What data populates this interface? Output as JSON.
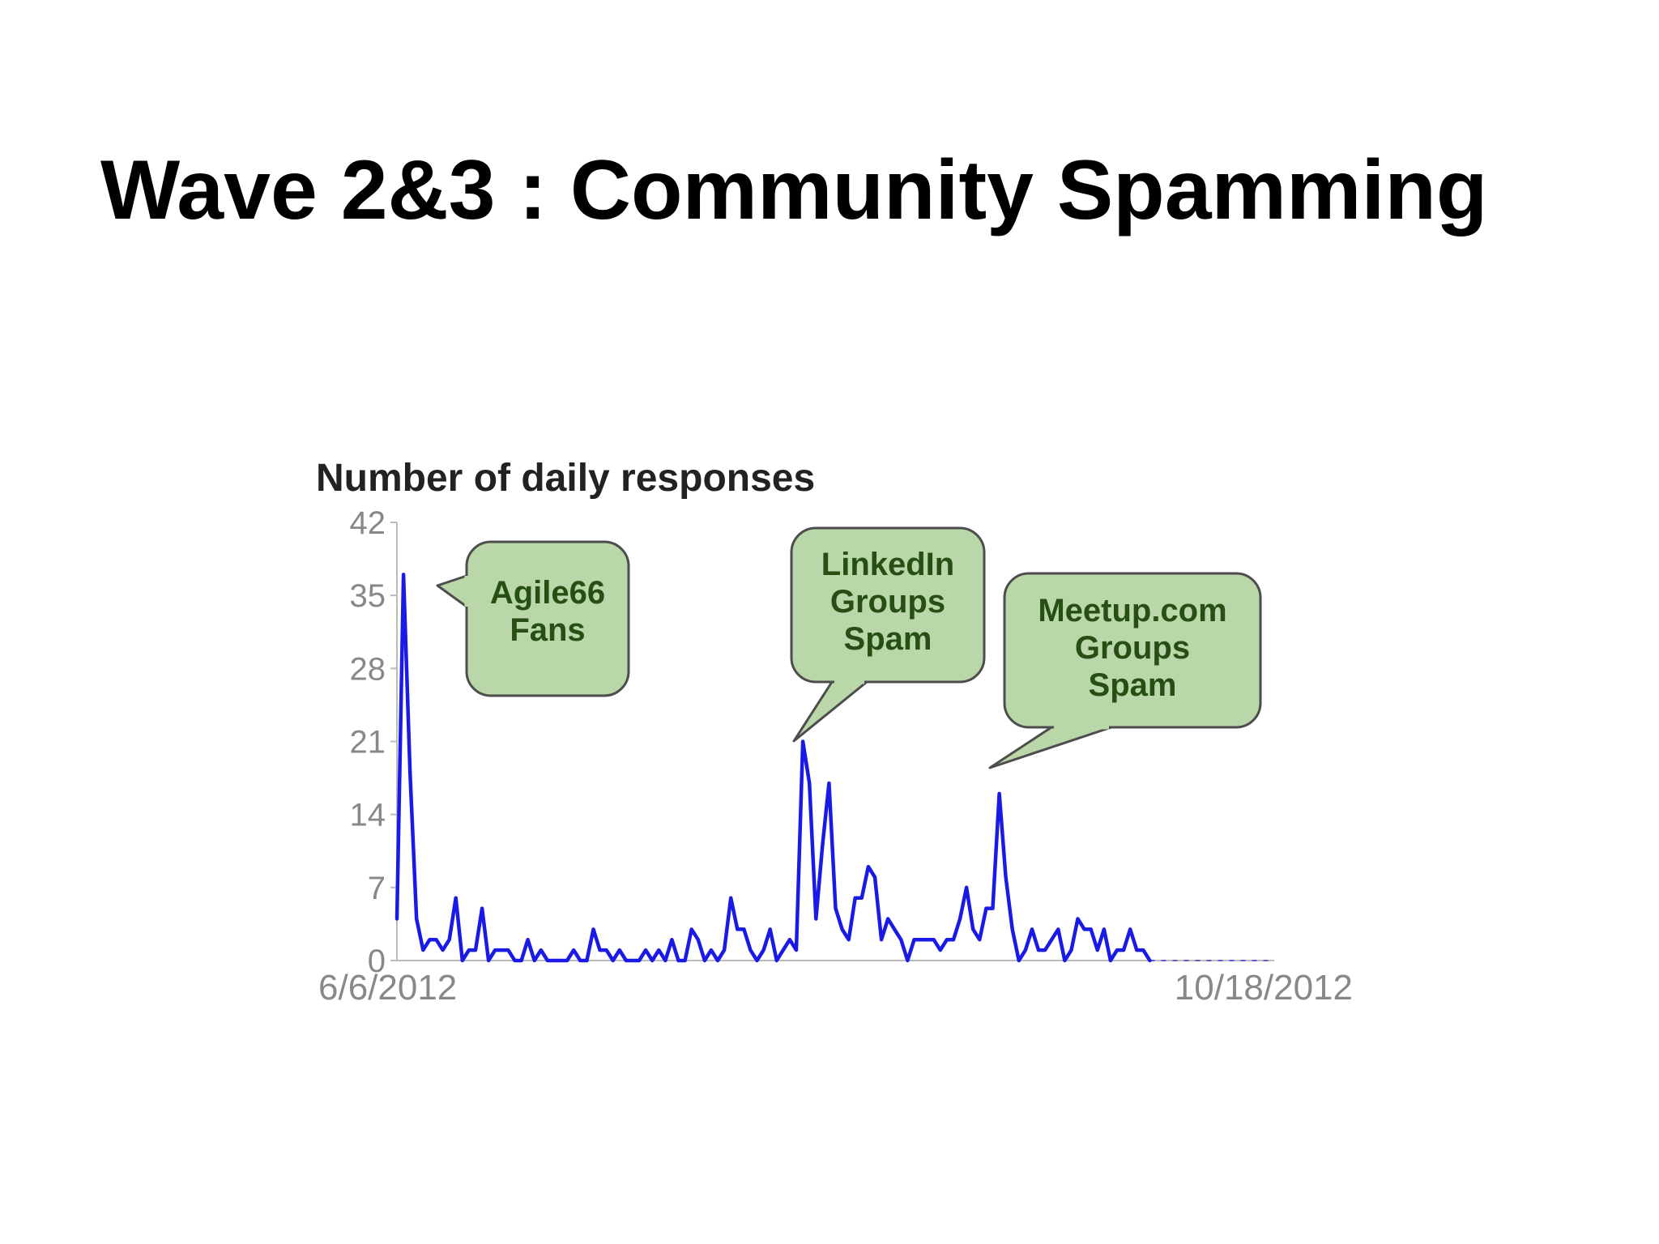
{
  "slide": {
    "title": "Wave 2&3 : Community Spamming"
  },
  "colors": {
    "line": "#1a1ae6",
    "callout_fill": "#b9d7a8",
    "callout_stroke": "#4d4d4d",
    "callout_text": "#274e13",
    "axis": "#bbbbbb",
    "tick_text": "#888888",
    "chart_title": "#222222"
  },
  "chart_data": {
    "type": "line",
    "title": "Number of daily responses",
    "xlabel": "",
    "ylabel": "",
    "x_start_label": "6/6/2012",
    "x_end_label": "10/18/2012",
    "x_range": [
      "6/6/2012",
      "10/18/2012"
    ],
    "ylim": [
      0,
      42
    ],
    "yticks": [
      0,
      7,
      14,
      21,
      28,
      35,
      42
    ],
    "grid": false,
    "legend": "none",
    "series": [
      {
        "values": [
          4,
          37,
          18,
          4,
          1,
          2,
          2,
          1,
          2,
          6,
          0,
          1,
          1,
          5,
          0,
          1,
          1,
          1,
          0,
          0,
          2,
          0,
          1,
          0,
          0,
          0,
          0,
          1,
          0,
          0,
          3,
          1,
          1,
          0,
          1,
          0,
          0,
          0,
          1,
          0,
          1,
          0,
          2,
          0,
          0,
          3,
          2,
          0,
          1,
          0,
          1,
          6,
          3,
          3,
          1,
          0,
          1,
          3,
          0,
          1,
          2,
          1,
          21,
          17,
          4,
          11,
          17,
          5,
          3,
          2,
          6,
          6,
          9,
          8,
          2,
          4,
          3,
          2,
          0,
          2,
          2,
          2,
          2,
          1,
          2,
          2,
          4,
          7,
          3,
          2,
          5,
          5,
          16,
          8,
          3,
          0,
          1,
          3,
          1,
          1,
          2,
          3,
          0,
          1,
          4,
          3,
          3,
          1,
          3,
          0,
          1,
          1,
          3,
          1,
          1,
          0,
          0,
          0,
          0,
          0,
          0,
          0,
          0,
          0,
          0,
          0,
          0,
          0,
          0,
          0,
          0,
          0,
          0,
          0,
          0
        ]
      }
    ],
    "annotations": [
      {
        "lines": [
          "Agile66",
          "Fans"
        ],
        "points_to": "6/7/2012 peak"
      },
      {
        "lines": [
          "LinkedIn",
          "Groups",
          "Spam"
        ],
        "points_to": "8/7/2012 peak"
      },
      {
        "lines": [
          "Meetup.com",
          "Groups",
          "Spam"
        ],
        "points_to": "9/6/2012 peak"
      }
    ]
  }
}
